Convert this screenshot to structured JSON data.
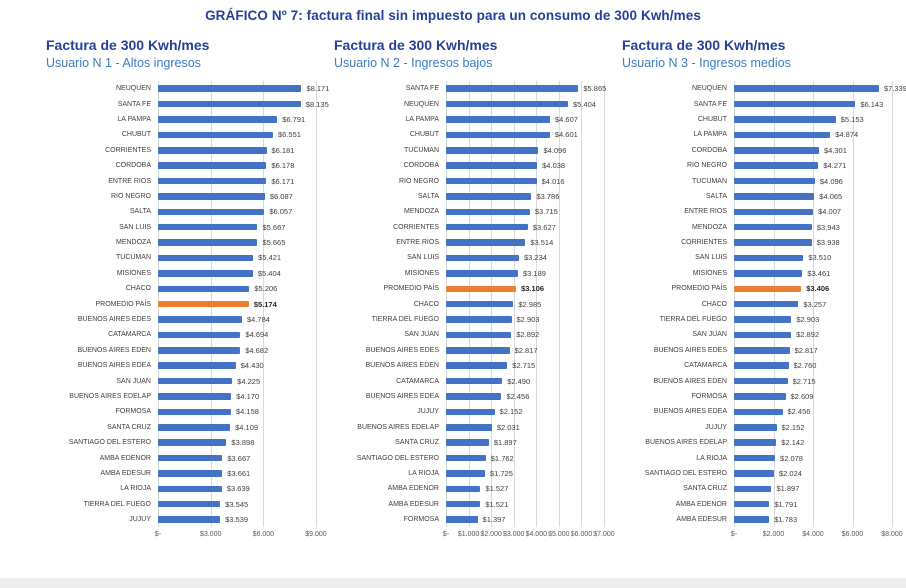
{
  "page_title": "GRÁFICO Nº 7: factura final sin impuesto para un consumo de 300 Kwh/mes",
  "colors": {
    "bar": "#4472C4",
    "highlight": "#ED7D31",
    "title_text": "#27409A",
    "subtitle_text": "#3B7CC4",
    "grid": "#D9D9D9",
    "value_text": "#404040",
    "axis_text": "#595959",
    "bottom_strip": "#EDEDED"
  },
  "chart_data": [
    {
      "type": "bar",
      "orientation": "horizontal",
      "title": "Factura de 300 Kwh/mes",
      "subtitle": "Usuario N 1 - Altos ingresos",
      "xlim": [
        0,
        9000
      ],
      "x_ticks": [
        "$-",
        "$3.000",
        "$6.000",
        "$9.000"
      ],
      "grid": true,
      "legend": false,
      "highlight": "PROMEDIO PAÍS",
      "categories": [
        "NEUQUEN",
        "SANTA FE",
        "LA PAMPA",
        "CHUBUT",
        "CORRIENTES",
        "CORDOBA",
        "ENTRE RIOS",
        "RIO NEGRO",
        "SALTA",
        "SAN LUIS",
        "MENDOZA",
        "TUCUMAN",
        "MISIONES",
        "CHACO",
        "PROMEDIO PAÍS",
        "BUENOS AIRES EDES",
        "CATAMARCA",
        "BUENOS AIRES EDEN",
        "BUENOS AIRES EDEA",
        "SAN JUAN",
        "BUENOS AIRES EDELAP",
        "FORMOSA",
        "SANTA CRUZ",
        "SANTIAGO DEL ESTERO",
        "AMBA EDENOR",
        "AMBA EDESUR",
        "LA RIOJA",
        "TIERRA DEL FUEGO",
        "JUJUY"
      ],
      "values": [
        8171,
        8135,
        6791,
        6551,
        6181,
        6178,
        6171,
        6087,
        6057,
        5667,
        5665,
        5421,
        5404,
        5206,
        5174,
        4784,
        4694,
        4682,
        4430,
        4225,
        4170,
        4158,
        4109,
        3898,
        3667,
        3661,
        3639,
        3545,
        3539
      ],
      "value_labels": [
        "$8.171",
        "$8.135",
        "$6.791",
        "$6.551",
        "$6.181",
        "$6.178",
        "$6.171",
        "$6.087",
        "$6.057",
        "$5.667",
        "$5.665",
        "$5.421",
        "$5.404",
        "$5.206",
        "$5.174",
        "$4.784",
        "$4.694",
        "$4.682",
        "$4.430",
        "$4.225",
        "$4.170",
        "$4.158",
        "$4.109",
        "$3.898",
        "$3.667",
        "$3.661",
        "$3.639",
        "$3.545",
        "$3.539"
      ]
    },
    {
      "type": "bar",
      "orientation": "horizontal",
      "title": "Factura de 300 Kwh/mes",
      "subtitle": "Usuario N 2 - Ingresos bajos",
      "xlim": [
        0,
        7000
      ],
      "x_ticks": [
        "$-",
        "$1.000",
        "$2.000",
        "$3.000",
        "$4.000",
        "$5.000",
        "$6.000",
        "$7.000"
      ],
      "grid": true,
      "legend": false,
      "highlight": "PROMEDIO PAÍS",
      "categories": [
        "SANTA FE",
        "NEUQUEN",
        "LA PAMPA",
        "CHUBUT",
        "TUCUMAN",
        "CORDOBA",
        "RIO NEGRO",
        "SALTA",
        "MENDOZA",
        "CORRIENTES",
        "ENTRE RIOS",
        "SAN LUIS",
        "MISIONES",
        "PROMEDIO PAÍS",
        "CHACO",
        "TIERRA DEL FUEGO",
        "SAN JUAN",
        "BUENOS AIRES EDES",
        "BUENOS AIRES EDEN",
        "CATAMARCA",
        "BUENOS AIRES EDEA",
        "JUJUY",
        "BUENOS AIRES EDELAP",
        "SANTA CRUZ",
        "SANTIAGO DEL ESTERO",
        "LA RIOJA",
        "AMBA EDENOR",
        "AMBA EDESUR",
        "FORMOSA"
      ],
      "values": [
        5865,
        5404,
        4607,
        4601,
        4096,
        4038,
        4016,
        3786,
        3715,
        3627,
        3514,
        3234,
        3189,
        3106,
        2985,
        2903,
        2892,
        2817,
        2715,
        2490,
        2456,
        2152,
        2031,
        1897,
        1762,
        1725,
        1527,
        1521,
        1397
      ],
      "value_labels": [
        "$5.865",
        "$5.404",
        "$4.607",
        "$4.601",
        "$4.096",
        "$4.038",
        "$4.016",
        "$3.786",
        "$3.715",
        "$3.627",
        "$3.514",
        "$3.234",
        "$3.189",
        "$3.106",
        "$2.985",
        "$2.903",
        "$2.892",
        "$2.817",
        "$2.715",
        "$2.490",
        "$2.456",
        "$2.152",
        "$2.031",
        "$1.897",
        "$1.762",
        "$1.725",
        "$1.527",
        "$1.521",
        "$1.397"
      ]
    },
    {
      "type": "bar",
      "orientation": "horizontal",
      "title": "Factura de 300 Kwh/mes",
      "subtitle": "Usuario N 3 - Ingresos medios",
      "xlim": [
        0,
        8000
      ],
      "x_ticks": [
        "$-",
        "$2.000",
        "$4.000",
        "$6.000",
        "$8.000"
      ],
      "grid": true,
      "legend": false,
      "highlight": "PROMEDIO PAÍS",
      "categories": [
        "NEUQUEN",
        "SANTA FE",
        "CHUBUT",
        "LA PAMPA",
        "CORDOBA",
        "RIO NEGRO",
        "TUCUMAN",
        "SALTA",
        "ENTRE RIOS",
        "MENDOZA",
        "CORRIENTES",
        "SAN LUIS",
        "MISIONES",
        "PROMEDIO PAÍS",
        "CHACO",
        "TIERRA DEL FUEGO",
        "SAN JUAN",
        "BUENOS AIRES EDES",
        "CATAMARCA",
        "BUENOS AIRES EDEN",
        "FORMOSA",
        "BUENOS AIRES EDEA",
        "JUJUY",
        "BUENOS AIRES EDELAP",
        "LA RIOJA",
        "SANTIAGO DEL ESTERO",
        "SANTA CRUZ",
        "AMBA EDENOR",
        "AMBA EDESUR"
      ],
      "values": [
        7339,
        6143,
        5153,
        4874,
        4301,
        4271,
        4096,
        4065,
        4007,
        3943,
        3938,
        3510,
        3461,
        3406,
        3257,
        2903,
        2892,
        2817,
        2760,
        2715,
        2609,
        2456,
        2152,
        2142,
        2078,
        2024,
        1897,
        1791,
        1783
      ],
      "value_labels": [
        "$7.339",
        "$6.143",
        "$5.153",
        "$4.874",
        "$4.301",
        "$4.271",
        "$4.096",
        "$4.065",
        "$4.007",
        "$3.943",
        "$3.938",
        "$3.510",
        "$3.461",
        "$3.406",
        "$3.257",
        "$2.903",
        "$2.892",
        "$2.817",
        "$2.760",
        "$2.715",
        "$2.609",
        "$2.456",
        "$2.152",
        "$2.142",
        "$2.078",
        "$2.024",
        "$1.897",
        "$1.791",
        "$1.783"
      ]
    }
  ]
}
